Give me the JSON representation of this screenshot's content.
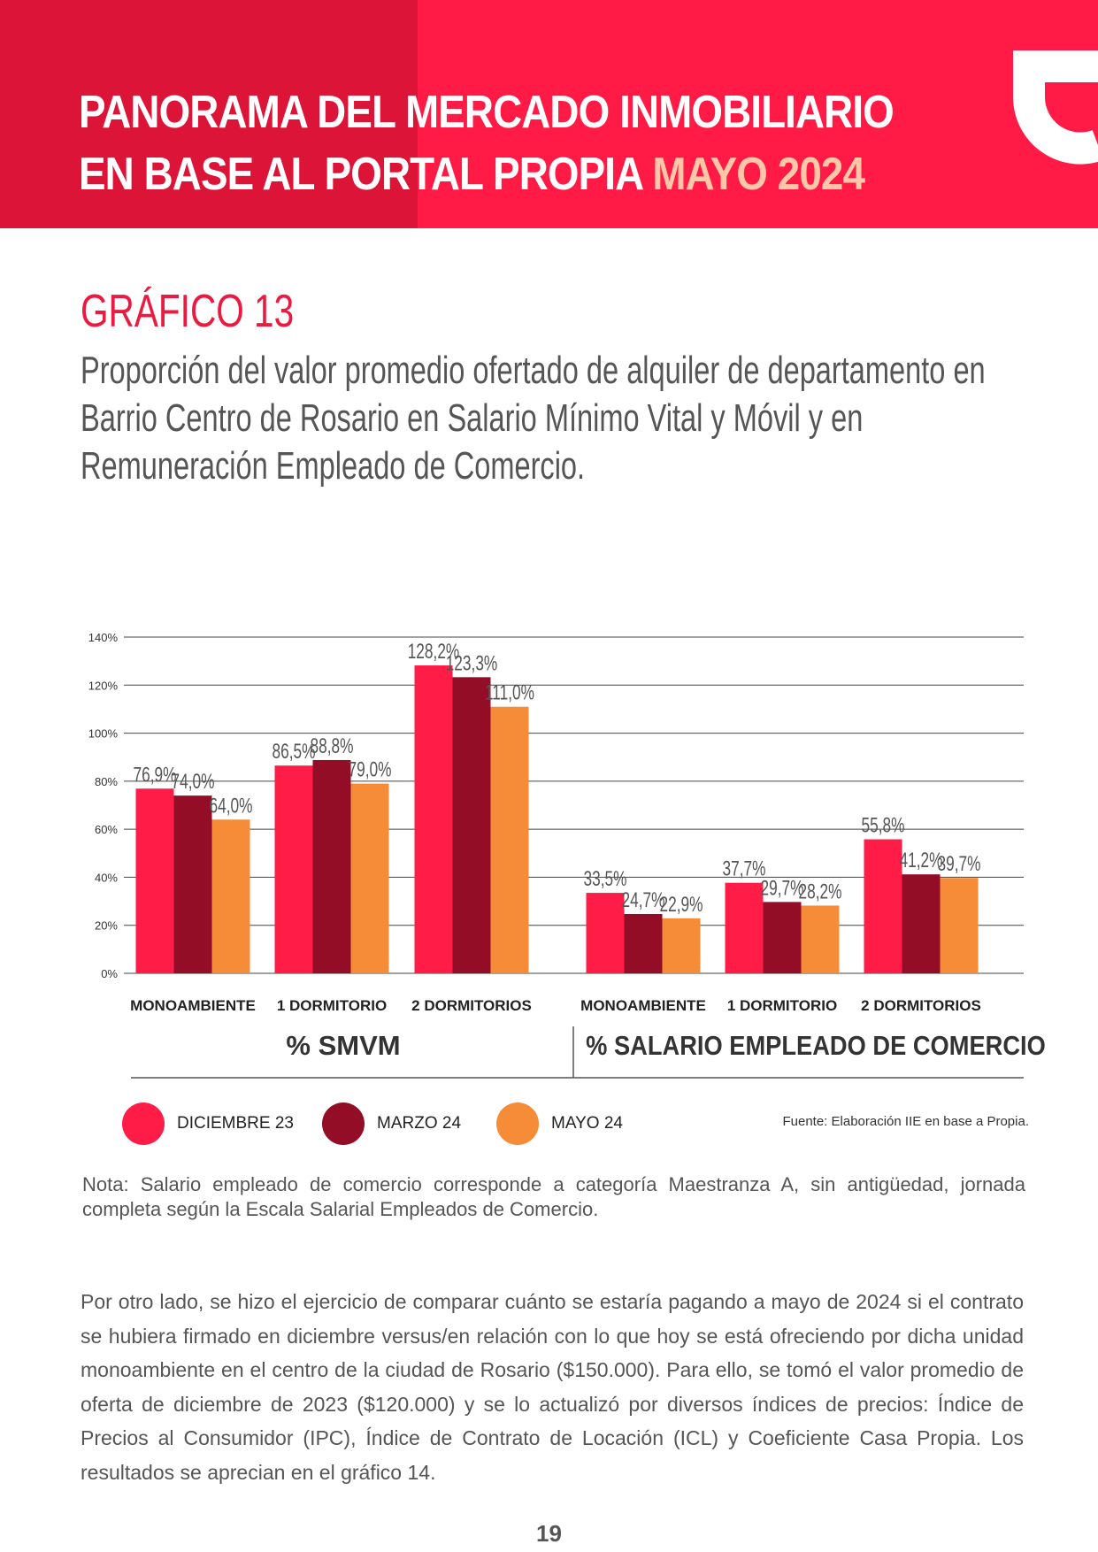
{
  "header": {
    "title_line1": "PANORAMA DEL MERCADO INMOBILIARIO",
    "title_line2": "EN BASE AL PORTAL PROPIA",
    "title_highlight": "MAYO 2024",
    "logo_icon": "brand-logo-icon"
  },
  "chart_heading": {
    "label": "GRÁFICO 13",
    "subtitle": "Proporción del valor promedio ofertado de alquiler de departamento en Barrio Centro de Rosario en Salario Mínimo Vital y Móvil y en Remuneración Empleado de Comercio."
  },
  "chart_data": {
    "type": "bar",
    "title": "",
    "ylim": [
      0,
      140
    ],
    "yticks": [
      "0%",
      "20%",
      "40%",
      "60%",
      "80%",
      "100%",
      "120%",
      "140%"
    ],
    "grid": true,
    "legend_position": "bottom",
    "groups": [
      {
        "label": "% SMVM",
        "categories": [
          "MONOAMBIENTE",
          "1 DORMITORIO",
          "2 DORMITORIOS"
        ]
      },
      {
        "label": "% SALARIO EMPLEADO DE COMERCIO",
        "categories": [
          "MONOAMBIENTE",
          "1 DORMITORIO",
          "2 DORMITORIOS"
        ]
      }
    ],
    "series": [
      {
        "name": "DICIEMBRE 23",
        "color": "#ff1d48",
        "values": [
          76.9,
          86.5,
          128.2,
          33.5,
          37.7,
          55.8
        ],
        "labels": [
          "76,9%",
          "86,5%",
          "128,2%",
          "33,5%",
          "37,7%",
          "55,8%"
        ]
      },
      {
        "name": "MARZO 24",
        "color": "#930d26",
        "values": [
          74.0,
          88.8,
          123.3,
          24.7,
          29.7,
          41.2
        ],
        "labels": [
          "74,0%",
          "88,8%",
          "123,3%",
          "24,7%",
          "29,7%",
          "41,2%"
        ]
      },
      {
        "name": "MAYO 24",
        "color": "#f68b38",
        "values": [
          64.0,
          79.0,
          111.0,
          22.9,
          28.2,
          39.7
        ],
        "labels": [
          "64,0%",
          "79,0%",
          "111,0%",
          "22,9%",
          "28,2%",
          "39,7%"
        ]
      }
    ]
  },
  "source": "Fuente: Elaboración IIE en base a Propia.",
  "note": "Nota: Salario empleado de comercio corresponde a categoría Maestranza A, sin antigüedad, jornada completa según la Escala Salarial Empleados de Comercio.",
  "body_text": "Por otro lado, se hizo el ejercicio de comparar cuánto se estaría pagando a mayo de 2024 si el contrato se hubiera firmado en diciembre versus/en relación con lo que hoy se está ofreciendo por dicha unidad monoambiente en el centro de la ciudad de Rosario ($150.000). Para ello, se tomó el valor promedio de oferta de diciembre de 2023 ($120.000) y se lo actualizó por diversos índices de precios: Índice de Precios al Consumidor (IPC), Índice de Contrato de Locación (ICL) y Coeficiente Casa Propia. Los resultados se aprecian en el gráfico 14.",
  "page_number": "19"
}
